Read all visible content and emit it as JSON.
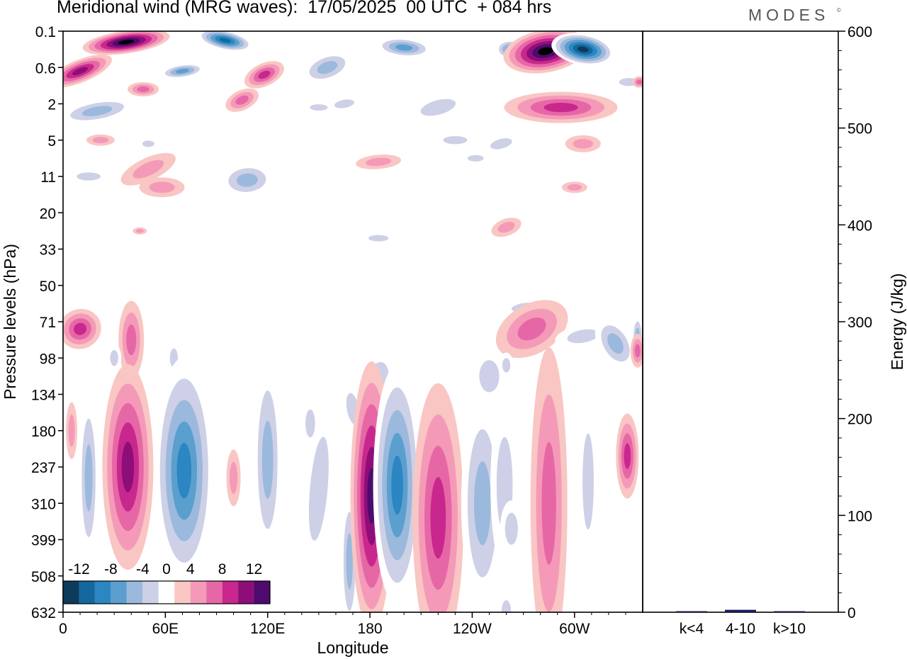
{
  "header": {
    "title": "Meridional wind (MRG waves):  17/05/2025  00 UTC  + 084 hrs",
    "brand": "MODES",
    "brand_mark": "©"
  },
  "chart_data": [
    {
      "type": "heatmap",
      "title": "Meridional wind (MRG waves):  17/05/2025  00 UTC  + 084 hrs",
      "xlabel": "Longitude",
      "ylabel": "Pressure levels (hPa)",
      "x_ticks": [
        {
          "lon": 0,
          "label": "0"
        },
        {
          "lon": 60,
          "label": "60E"
        },
        {
          "lon": 120,
          "label": "120E"
        },
        {
          "lon": 180,
          "label": "180"
        },
        {
          "lon": 240,
          "label": "120W"
        },
        {
          "lon": 300,
          "label": "60W"
        }
      ],
      "xlim": [
        0,
        340
      ],
      "y_levels": [
        "0.1",
        "0.6",
        "2",
        "5",
        "11",
        "20",
        "33",
        "50",
        "71",
        "98",
        "134",
        "180",
        "237",
        "310",
        "399",
        "508",
        "632"
      ],
      "colorbar": {
        "labels": [
          "-12",
          "-8",
          "-4",
          "0",
          "4",
          "8",
          "12"
        ],
        "levels": [
          -14,
          -12,
          -10,
          -8,
          -6,
          -4,
          -2,
          2,
          4,
          6,
          8,
          10,
          12,
          14
        ],
        "colors": [
          "#0d3b5c",
          "#15689e",
          "#2b86c2",
          "#5b9fcf",
          "#9bb9dc",
          "#cdd0e6",
          "#ffffff",
          "#f9c6c3",
          "#f49ab8",
          "#e667a6",
          "#c8288d",
          "#8e0e79",
          "#4e0a6e"
        ]
      },
      "features": [
        {
          "lon": 40,
          "level": "180",
          "value": 8
        },
        {
          "lon": 72,
          "level": "180",
          "value": -10
        },
        {
          "lon": 168,
          "level": "237",
          "value": -6
        },
        {
          "lon": 181,
          "level": "237",
          "value": 12
        },
        {
          "lon": 196,
          "level": "180",
          "value": -10
        },
        {
          "lon": 220,
          "level": "237",
          "value": 8
        },
        {
          "lon": 245,
          "level": "237",
          "value": -6
        },
        {
          "lon": 285,
          "level": "180",
          "value": 6
        },
        {
          "lon": 331,
          "level": "180",
          "value": 8
        },
        {
          "lon": 35,
          "level": "0.1",
          "value": 14
        },
        {
          "lon": 284,
          "level": "0.1",
          "value": 14
        },
        {
          "lon": 308,
          "level": "0.1",
          "value": -14
        },
        {
          "lon": 95,
          "level": "0.1",
          "value": -10
        },
        {
          "lon": 10,
          "level": "0.6",
          "value": 10
        },
        {
          "lon": 288,
          "level": "2",
          "value": 8
        }
      ]
    },
    {
      "type": "bar",
      "categories": [
        "k<4",
        "4-10",
        "k>10"
      ],
      "values": [
        0.4,
        2.5,
        0.3
      ],
      "ylabel": "Energy (J/kg)",
      "ylim": [
        0,
        600
      ],
      "yticks": [
        "0",
        "100",
        "200",
        "300",
        "400",
        "500",
        "600"
      ],
      "bar_color": "#1a1a5e"
    }
  ]
}
